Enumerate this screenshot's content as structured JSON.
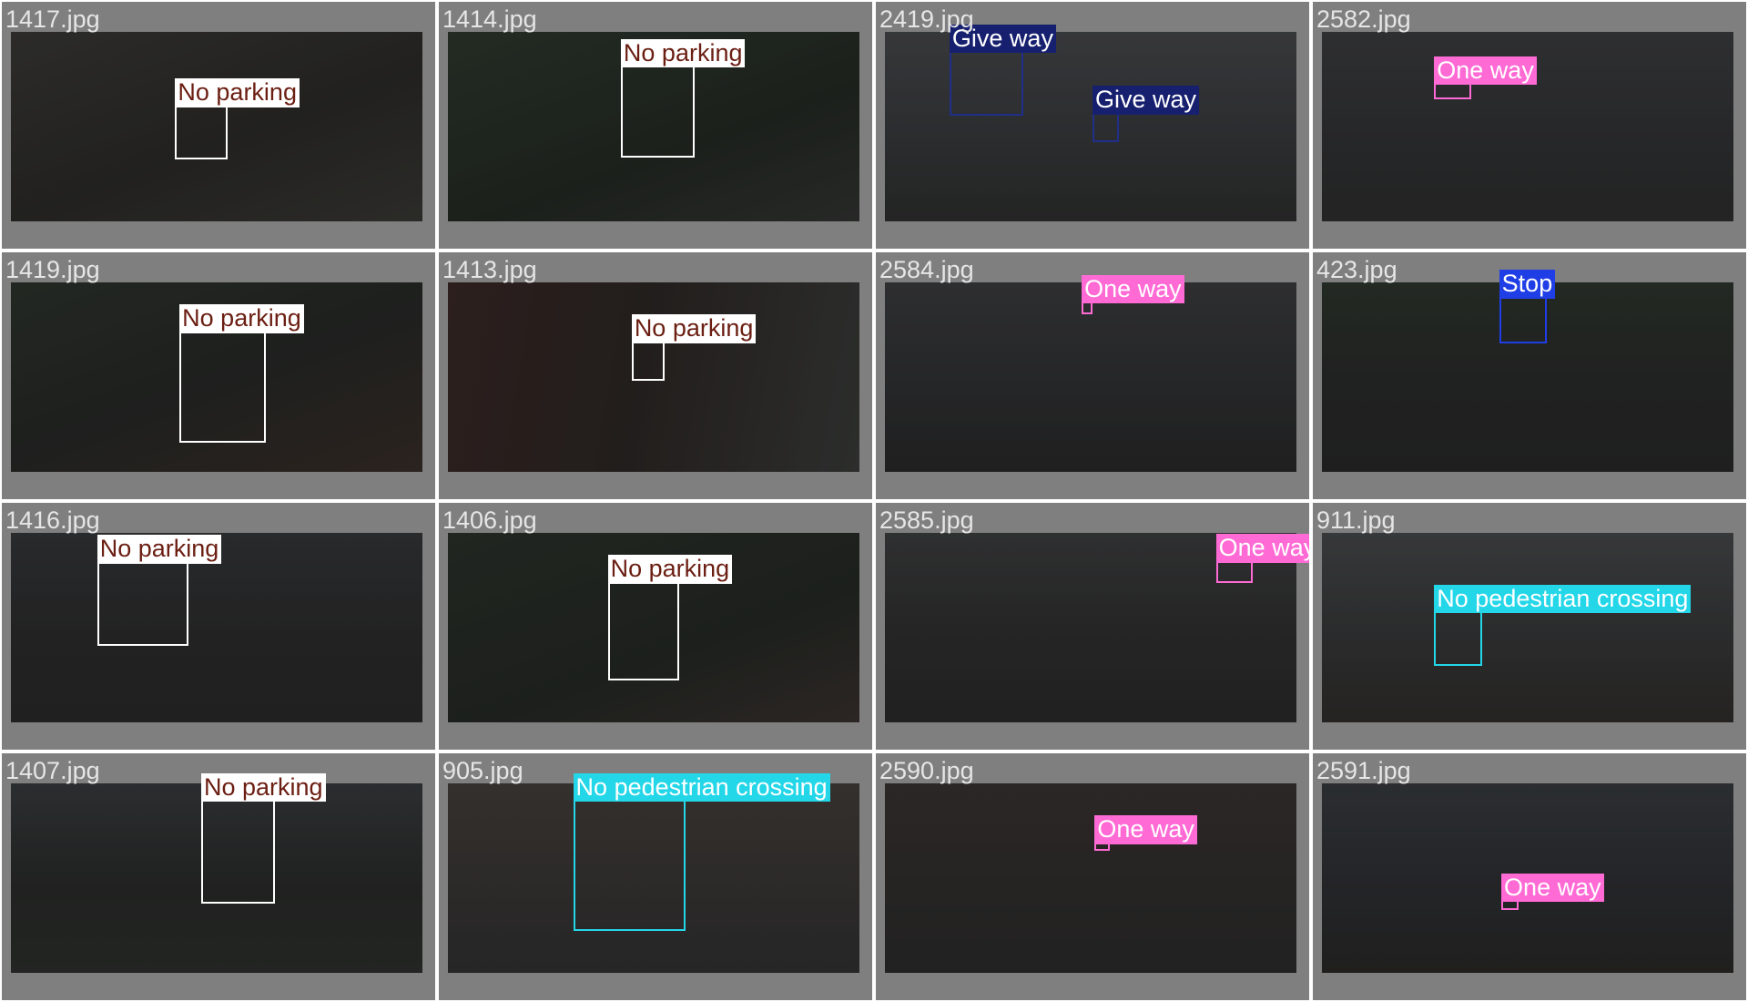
{
  "grid": {
    "cells": [
      {
        "filename": "1417.jpg",
        "label": "No parking"
      },
      {
        "filename": "1414.jpg",
        "label": "No parking"
      },
      {
        "filename": "2419.jpg",
        "label": "Give way",
        "label2": "Give way"
      },
      {
        "filename": "2582.jpg",
        "label": "One way"
      },
      {
        "filename": "1419.jpg",
        "label": "No parking"
      },
      {
        "filename": "1413.jpg",
        "label": "No parking"
      },
      {
        "filename": "2584.jpg",
        "label": "One way"
      },
      {
        "filename": "423.jpg",
        "label": "Stop"
      },
      {
        "filename": "1416.jpg",
        "label": "No parking"
      },
      {
        "filename": "1406.jpg",
        "label": "No parking"
      },
      {
        "filename": "2585.jpg",
        "label": "One way"
      },
      {
        "filename": "911.jpg",
        "label": "No pedestrian crossing"
      },
      {
        "filename": "1407.jpg",
        "label": "No parking"
      },
      {
        "filename": "905.jpg",
        "label": "No pedestrian crossing"
      },
      {
        "filename": "2590.jpg",
        "label": "One way"
      },
      {
        "filename": "2591.jpg",
        "label": "One way"
      }
    ]
  },
  "class_colors": {
    "No parking": {
      "box": "#ffffff",
      "label_bg": "#ffffff",
      "label_text": "#6b1e12"
    },
    "Give way": {
      "box": "#1f2f8a",
      "label_bg": "#16206e",
      "label_text": "#ffffff"
    },
    "One way": {
      "box": "#ff6ad5",
      "label_bg": "#ff6ad5",
      "label_text": "#ffffff"
    },
    "Stop": {
      "box": "#1f3ee6",
      "label_bg": "#1f3ee6",
      "label_text": "#ffffff"
    },
    "No pedestrian crossing": {
      "box": "#23d6e8",
      "label_bg": "#23d6e8",
      "label_text": "#ffffff"
    }
  }
}
